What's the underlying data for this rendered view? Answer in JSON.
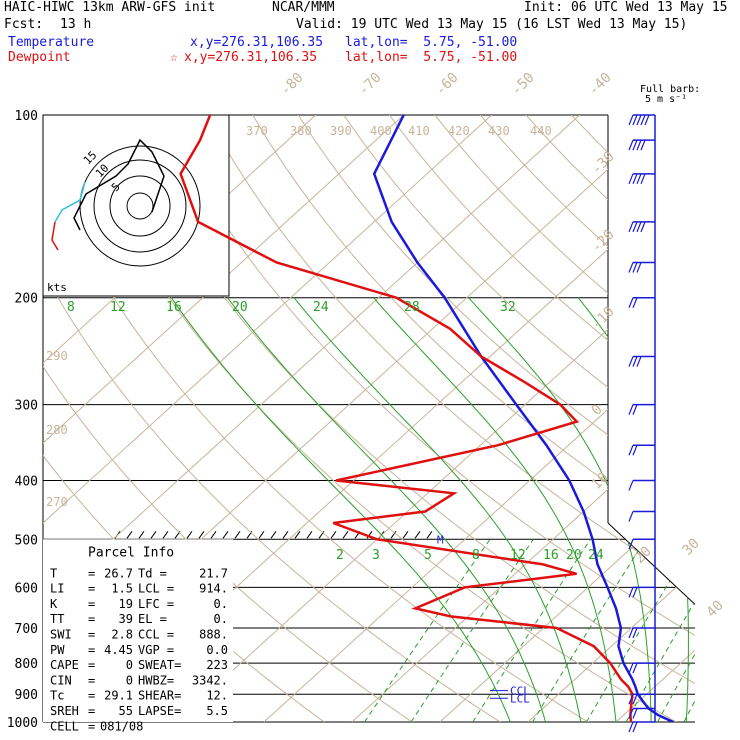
{
  "header": {
    "model": "HAIC-HIWC 13km ARW-GFS init",
    "org": "NCAR/MMM",
    "init": "Init: 06 UTC Wed 13 May 15",
    "fcst_label": "Fcst:",
    "fcst_value": "13 h",
    "valid": "Valid: 19 UTC Wed 13 May 15 (16 LST Wed 13 May 15)",
    "temp_label": "Temperature",
    "temp_xy": "x,y=276.31,106.35",
    "temp_latlon": "lat,lon=  5.75, -51.00",
    "dew_label": "Dewpoint",
    "dew_mark": "☆",
    "dew_xy": "x,y=276.31,106.35",
    "dew_latlon": "lat,lon=  5.75, -51.00"
  },
  "barb_legend": {
    "line1": "Full barb:",
    "line2": "5 m s⁻¹"
  },
  "hodograph": {
    "units": "kts",
    "ring_labels": [
      "15",
      "10",
      "5"
    ]
  },
  "parcel_info": {
    "title": "Parcel Info",
    "rows": [
      [
        "T",
        "=",
        "26.7",
        "Td =",
        "21.7"
      ],
      [
        "LI",
        "=",
        "1.5",
        "LCL =",
        "914."
      ],
      [
        "K",
        "=",
        "19",
        "LFC =",
        "0."
      ],
      [
        "TT",
        "=",
        "39",
        "EL =",
        "0."
      ],
      [
        "SWI",
        "=",
        "2.8",
        "CCL =",
        "888."
      ],
      [
        "PW",
        "=",
        "4.45",
        "VGP =",
        "0.0"
      ],
      [
        "CAPE",
        "=",
        "0",
        "SWEAT=",
        "223"
      ],
      [
        "CIN",
        "=",
        "0",
        "HWBZ=",
        "3342."
      ],
      [
        "Tc",
        "=",
        "29.1",
        "SHEAR=",
        "12."
      ],
      [
        "SREH",
        "=",
        "55",
        "LAPSE=",
        "5.5"
      ],
      [
        "CELL",
        "=",
        "081/08",
        "",
        ""
      ]
    ]
  },
  "chart_data": {
    "type": "line",
    "title": "Skew-T log-P",
    "pressure_axis_labels": [
      "100",
      "200",
      "300",
      "400",
      "500",
      "600",
      "700",
      "800",
      "900",
      "1000"
    ],
    "isotherm_labels": [
      "-80",
      "-70",
      "-60",
      "-50",
      "-40",
      "-30",
      "-20",
      "-10",
      "0",
      "10",
      "20",
      "30",
      "40"
    ],
    "theta_labels": [
      "370",
      "380",
      "390",
      "400",
      "410",
      "420",
      "430",
      "440",
      "290",
      "280",
      "270"
    ],
    "mixing_ratio_labels_upper": [
      "8",
      "12",
      "16",
      "20",
      "24",
      "28",
      "32"
    ],
    "mixing_ratio_labels_lower": [
      "2",
      "3",
      "5",
      "8",
      "12",
      "16",
      "20",
      "24"
    ],
    "level_markers": [
      "M",
      "CCL",
      "LCL"
    ],
    "series": [
      {
        "name": "Temperature",
        "color": "#1a1adc",
        "points": [
          [
            1000,
            26.5
          ],
          [
            975,
            24.0
          ],
          [
            950,
            22.0
          ],
          [
            925,
            20.5
          ],
          [
            900,
            19.0
          ],
          [
            875,
            17.8
          ],
          [
            850,
            16.5
          ],
          [
            800,
            13.5
          ],
          [
            750,
            10.8
          ],
          [
            700,
            8.8
          ],
          [
            650,
            5.8
          ],
          [
            600,
            2.2
          ],
          [
            550,
            -1.8
          ],
          [
            500,
            -5.5
          ],
          [
            450,
            -10.0
          ],
          [
            400,
            -15.5
          ],
          [
            350,
            -22.5
          ],
          [
            300,
            -31.0
          ],
          [
            250,
            -41.0
          ],
          [
            200,
            -52.5
          ],
          [
            175,
            -60.0
          ],
          [
            150,
            -68.0
          ],
          [
            125,
            -76.0
          ],
          [
            100,
            -80.0
          ]
        ]
      },
      {
        "name": "Dewpoint",
        "color": "#e01010",
        "points": [
          [
            1000,
            21.7
          ],
          [
            975,
            20.8
          ],
          [
            950,
            20.0
          ],
          [
            925,
            19.2
          ],
          [
            900,
            18.4
          ],
          [
            875,
            17.0
          ],
          [
            850,
            15.2
          ],
          [
            800,
            12.0
          ],
          [
            750,
            8.0
          ],
          [
            700,
            1.5
          ],
          [
            670,
            -12.0
          ],
          [
            650,
            -17.0
          ],
          [
            600,
            -14.0
          ],
          [
            570,
            -3.0
          ],
          [
            550,
            -8.0
          ],
          [
            500,
            -30.0
          ],
          [
            470,
            -37.0
          ],
          [
            450,
            -28.0
          ],
          [
            420,
            -27.0
          ],
          [
            400,
            -42.0
          ],
          [
            350,
            -28.0
          ],
          [
            320,
            -22.0
          ],
          [
            300,
            -26.0
          ],
          [
            275,
            -33.0
          ],
          [
            250,
            -41.0
          ],
          [
            225,
            -48.0
          ],
          [
            200,
            -58.0
          ],
          [
            175,
            -76.0
          ],
          [
            150,
            -90.0
          ],
          [
            125,
            -98.0
          ],
          [
            110,
            -100.0
          ],
          [
            100,
            -102.0
          ]
        ]
      }
    ],
    "wind_barbs_ms": [
      {
        "p": 100,
        "spd": 25,
        "dir": 90
      },
      {
        "p": 110,
        "spd": 22,
        "dir": 90
      },
      {
        "p": 125,
        "spd": 20,
        "dir": 95
      },
      {
        "p": 150,
        "spd": 18,
        "dir": 90
      },
      {
        "p": 175,
        "spd": 15,
        "dir": 90
      },
      {
        "p": 200,
        "spd": 12,
        "dir": 95
      },
      {
        "p": 250,
        "spd": 15,
        "dir": 80
      },
      {
        "p": 300,
        "spd": 12,
        "dir": 70
      },
      {
        "p": 350,
        "spd": 8,
        "dir": 60
      },
      {
        "p": 400,
        "spd": 5,
        "dir": 45
      },
      {
        "p": 450,
        "spd": 5,
        "dir": 90
      },
      {
        "p": 500,
        "spd": 5,
        "dir": 90
      },
      {
        "p": 600,
        "spd": 8,
        "dir": 90
      },
      {
        "p": 700,
        "spd": 8,
        "dir": 90
      },
      {
        "p": 800,
        "spd": 10,
        "dir": 90
      },
      {
        "p": 900,
        "spd": 12,
        "dir": 90
      },
      {
        "p": 950,
        "spd": 12,
        "dir": 90
      },
      {
        "p": 1000,
        "spd": 10,
        "dir": 90
      }
    ],
    "hodograph_kts": [
      [
        -20,
        8
      ],
      [
        -22,
        4
      ],
      [
        -18,
        -4
      ],
      [
        -8,
        -10
      ],
      [
        -4,
        -14
      ],
      [
        0,
        -22
      ],
      [
        4,
        -18
      ],
      [
        8,
        -10
      ],
      [
        4,
        2
      ]
    ]
  }
}
